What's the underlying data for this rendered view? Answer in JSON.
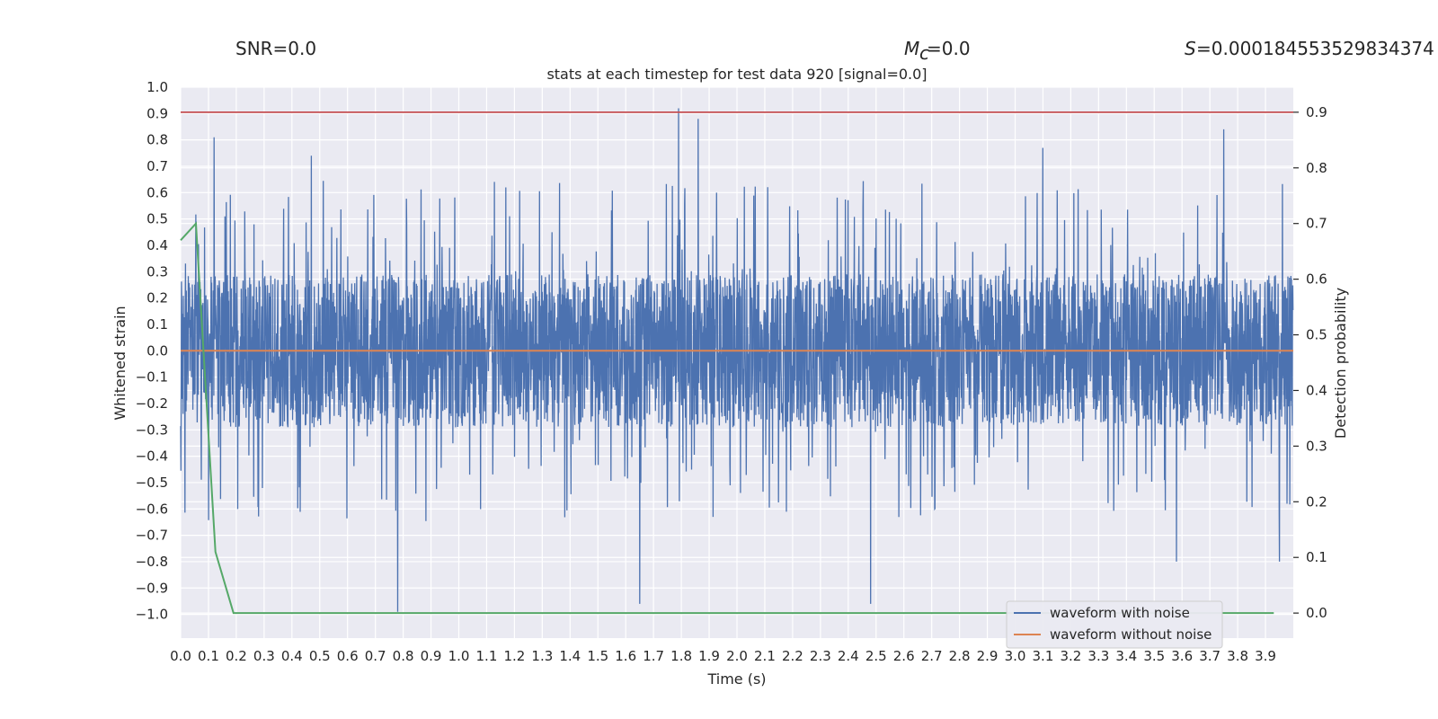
{
  "header": {
    "snr": "SNR=0.0",
    "mc_value": "=0.0",
    "s_value": "=0.000184553529834374"
  },
  "chart_data": {
    "type": "line",
    "title": "stats at each timestep for test data 920 [signal=0.0]",
    "xlabel": "Time (s)",
    "ylabel": "Whitened strain",
    "y2label": "Detection probability",
    "xlim": [
      0.0,
      4.0
    ],
    "ylim": [
      -1.09,
      1.0
    ],
    "y2lim": [
      -0.045,
      0.945
    ],
    "xticks": [
      "0.0",
      "0.1",
      "0.2",
      "0.3",
      "0.4",
      "0.5",
      "0.6",
      "0.7",
      "0.8",
      "0.9",
      "1.0",
      "1.1",
      "1.2",
      "1.3",
      "1.4",
      "1.5",
      "1.6",
      "1.7",
      "1.8",
      "1.9",
      "2.0",
      "2.1",
      "2.2",
      "2.3",
      "2.4",
      "2.5",
      "2.6",
      "2.7",
      "2.8",
      "2.9",
      "3.0",
      "3.1",
      "3.2",
      "3.3",
      "3.4",
      "3.5",
      "3.6",
      "3.7",
      "3.8",
      "3.9"
    ],
    "yticks": [
      "1.0",
      "0.9",
      "0.8",
      "0.7",
      "0.6",
      "0.5",
      "0.4",
      "0.3",
      "0.2",
      "0.1",
      "0.0",
      "−0.1",
      "−0.2",
      "−0.3",
      "−0.4",
      "−0.5",
      "−0.6",
      "−0.7",
      "−0.8",
      "−0.9",
      "−1.0"
    ],
    "y2ticks": [
      "0.9",
      "0.8",
      "0.7",
      "0.6",
      "0.5",
      "0.4",
      "0.3",
      "0.2",
      "0.1",
      "0.0"
    ],
    "grid": true,
    "legend_position": "lower-right",
    "series": [
      {
        "name": "waveform with noise",
        "color": "#4c72b0",
        "axis": "left",
        "note": "dense noise approx. ±0.3, extremes listed as peaks",
        "peaks": [
          [
            0.12,
            0.81
          ],
          [
            0.47,
            0.74
          ],
          [
            0.78,
            -0.99
          ],
          [
            1.65,
            -0.96
          ],
          [
            1.79,
            0.92
          ],
          [
            1.86,
            0.88
          ],
          [
            2.48,
            -0.96
          ],
          [
            3.1,
            0.77
          ],
          [
            3.75,
            0.84
          ],
          [
            3.95,
            -0.8
          ],
          [
            3.58,
            -0.8
          ]
        ]
      },
      {
        "name": "waveform without noise",
        "color": "#dd8452",
        "axis": "left",
        "x": [
          0.0,
          4.0
        ],
        "y": [
          0.0,
          0.0
        ]
      },
      {
        "color": "#55a868",
        "axis": "right",
        "x": [
          0.0,
          0.055,
          0.125,
          0.19,
          3.93
        ],
        "y": [
          0.67,
          0.7,
          0.11,
          0.0,
          0.0
        ]
      },
      {
        "color": "#c44e52",
        "axis": "right",
        "x": [
          0.0,
          4.0
        ],
        "y": [
          0.9,
          0.9
        ]
      }
    ]
  }
}
